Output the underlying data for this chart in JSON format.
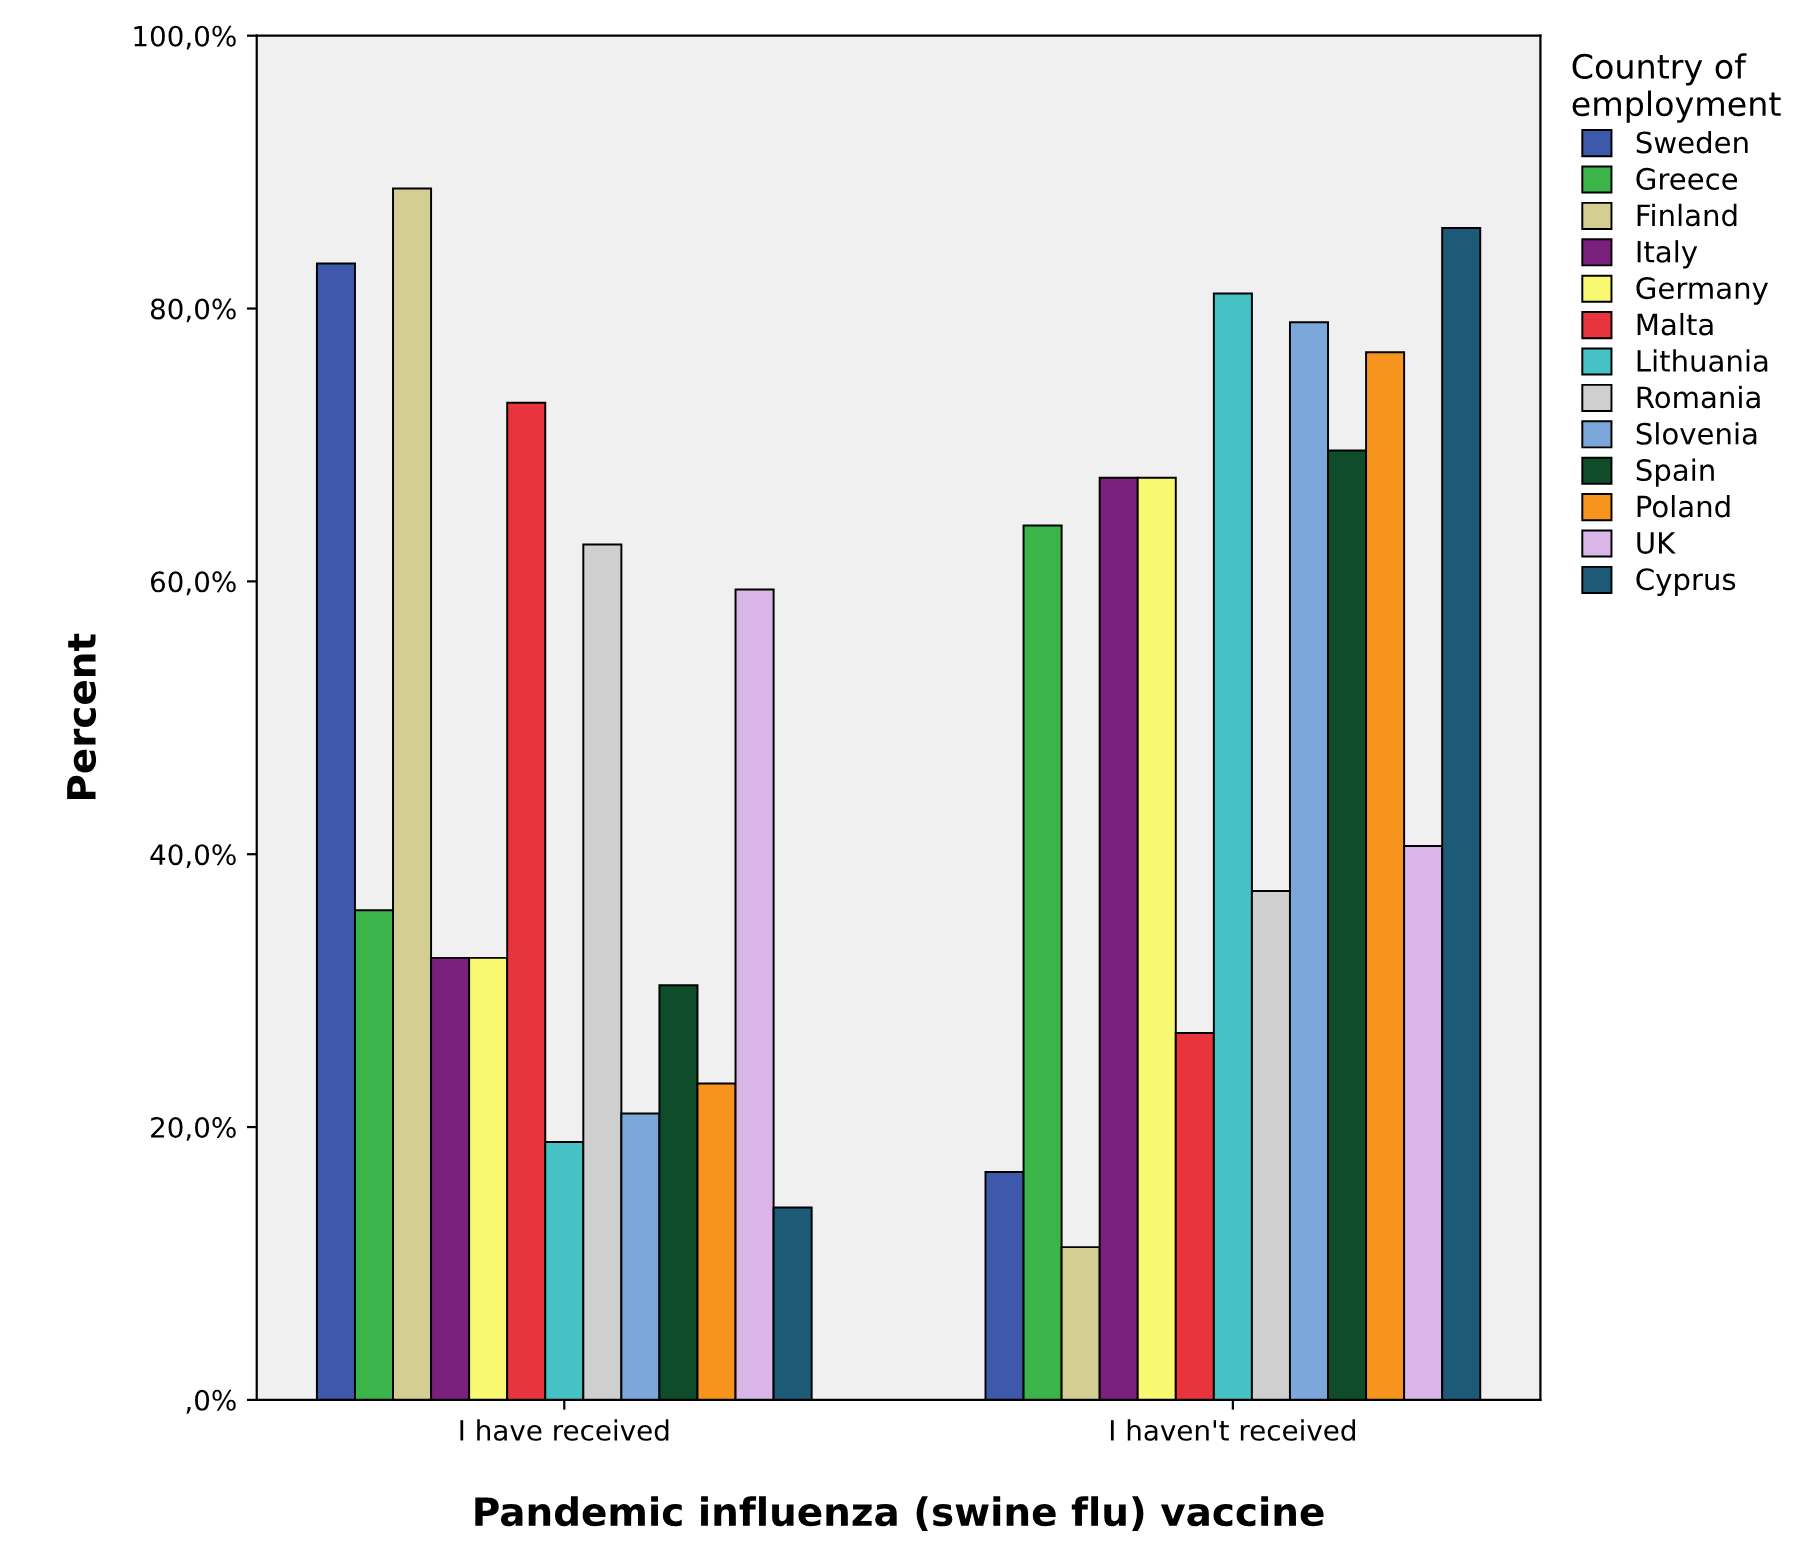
{
  "chart_data": {
    "type": "bar",
    "xlabel": "Pandemic influenza (swine flu) vaccine",
    "ylabel": "Percent",
    "legend_title": "Country of\nemployment",
    "legend": "right",
    "grid": false,
    "categories": [
      "I have received",
      "I haven't received"
    ],
    "ylim": [
      0,
      100
    ],
    "yticks": [
      {
        "value": 0,
        "label": ",0%"
      },
      {
        "value": 20,
        "label": "20,0%"
      },
      {
        "value": 40,
        "label": "40,0%"
      },
      {
        "value": 60,
        "label": "60,0%"
      },
      {
        "value": 80,
        "label": "80,0%"
      },
      {
        "value": 100,
        "label": "100,0%"
      }
    ],
    "series": [
      {
        "name": "Sweden",
        "color": "#3e58ac",
        "values": [
          83.3,
          16.7
        ]
      },
      {
        "name": "Greece",
        "color": "#3bb44a",
        "values": [
          35.9,
          64.1
        ]
      },
      {
        "name": "Finland",
        "color": "#d5ce93",
        "values": [
          88.8,
          11.2
        ]
      },
      {
        "name": "Italy",
        "color": "#7b1f7c",
        "values": [
          32.4,
          67.6
        ]
      },
      {
        "name": "Germany",
        "color": "#f9f871",
        "values": [
          32.4,
          67.6
        ]
      },
      {
        "name": "Malta",
        "color": "#ea343d",
        "values": [
          73.1,
          26.9
        ]
      },
      {
        "name": "Lithuania",
        "color": "#46c1c4",
        "values": [
          18.9,
          81.1
        ]
      },
      {
        "name": "Romania",
        "color": "#cfcfcf",
        "values": [
          62.7,
          37.3
        ]
      },
      {
        "name": "Slovenia",
        "color": "#7ba7db",
        "values": [
          21.0,
          79.0
        ]
      },
      {
        "name": "Spain",
        "color": "#0f4d2a",
        "values": [
          30.4,
          69.6
        ]
      },
      {
        "name": "Poland",
        "color": "#f7941d",
        "values": [
          23.2,
          76.8
        ]
      },
      {
        "name": "UK",
        "color": "#d9b5e8",
        "values": [
          59.4,
          40.6
        ]
      },
      {
        "name": "Cyprus",
        "color": "#1d5a77",
        "values": [
          14.1,
          85.9
        ]
      }
    ]
  }
}
